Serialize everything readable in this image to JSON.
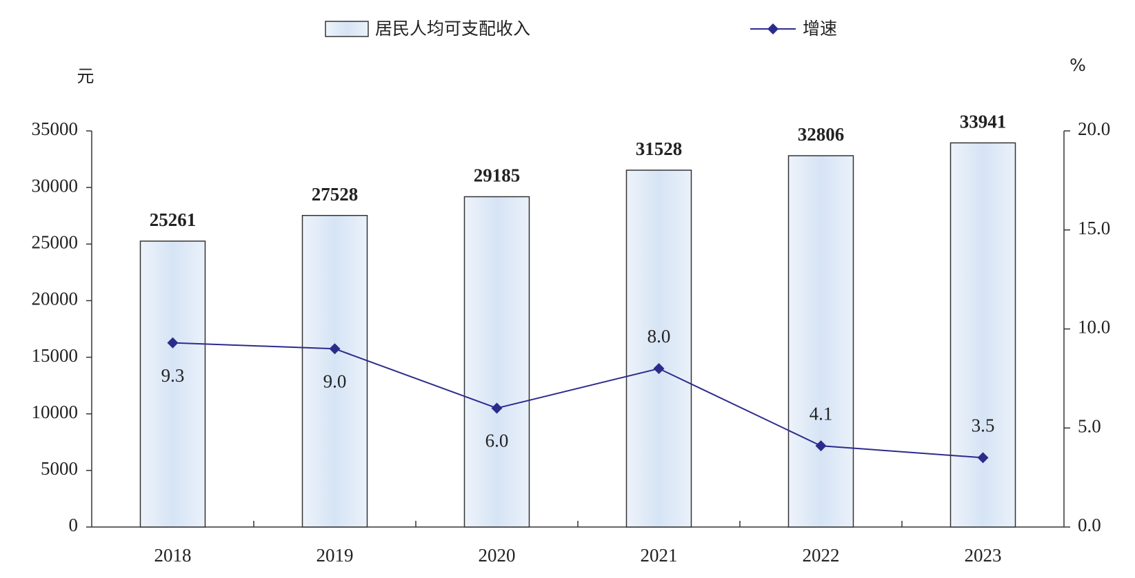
{
  "chart_data": {
    "type": "bar",
    "y_label": "元",
    "y2_label": "%",
    "categories": [
      "2018",
      "2019",
      "2020",
      "2021",
      "2022",
      "2023"
    ],
    "series": [
      {
        "name": "居民人均可支配收入",
        "type": "bar",
        "color": "#dbe7f6",
        "values": [
          25261,
          27528,
          29185,
          31528,
          32806,
          33941
        ]
      },
      {
        "name": "增速",
        "type": "line",
        "axis": "y2",
        "color": "#2b2b8c",
        "values": [
          9.3,
          9,
          6,
          8,
          4.1,
          3.5
        ],
        "value_labels": [
          "9.3",
          "9.0",
          "6.0",
          "8.0",
          "4.1",
          "3.5"
        ]
      }
    ],
    "ylim": [
      0,
      35000
    ],
    "yticks": [
      0,
      5000,
      10000,
      15000,
      20000,
      25000,
      30000,
      35000
    ],
    "y2lim": [
      0,
      20
    ],
    "y2ticks": [
      {
        "value": 0,
        "label": "0.0"
      },
      {
        "value": 5,
        "label": "5.0"
      },
      {
        "value": 10,
        "label": "10.0"
      },
      {
        "value": 15,
        "label": "15.0"
      },
      {
        "value": 20,
        "label": "20.0"
      }
    ],
    "legend": "top"
  }
}
